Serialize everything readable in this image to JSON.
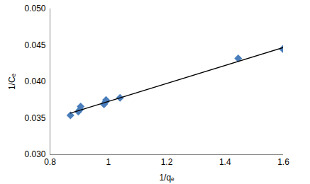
{
  "chart_data": {
    "type": "scatter",
    "x_label": "1/qₑ",
    "y_label": "1/Cₑ",
    "xlim": [
      0.8,
      1.6
    ],
    "xticks": [
      0.8,
      1,
      1.2,
      1.4,
      1.6
    ],
    "ylim": [
      0.03,
      0.05
    ],
    "yticks": [
      {
        "value": 0.03,
        "label": "0.030"
      },
      {
        "value": 0.035,
        "label": "0.035"
      },
      {
        "value": 0.04,
        "label": "0.040"
      },
      {
        "value": 0.045,
        "label": "0.045"
      },
      {
        "value": 0.05,
        "label": "0.050"
      }
    ],
    "grid": false,
    "series": [
      {
        "type": "scatter",
        "marker": "diamond",
        "color": "#4a7ebb",
        "x": [
          0.87,
          0.897,
          0.903,
          0.905,
          0.985,
          0.99,
          0.992,
          1.04,
          1.445,
          1.598
        ],
        "values": [
          0.0354,
          0.0359,
          0.0362,
          0.0366,
          0.0369,
          0.0372,
          0.0375,
          0.0378,
          0.0432,
          0.0445
        ]
      },
      {
        "type": "line",
        "line_style": "solid",
        "color": "#000000",
        "x": [
          0.87,
          1.6
        ],
        "values": [
          0.0357,
          0.0447
        ]
      }
    ]
  }
}
